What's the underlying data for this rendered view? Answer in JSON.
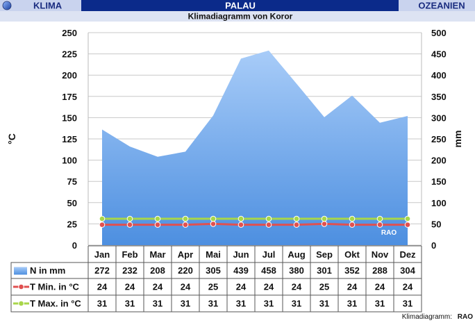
{
  "header": {
    "left_label": "KLIMA",
    "center_label": "PALAU",
    "right_label": "OZEANIEN",
    "subtitle": "Klimadiagramm von Koror"
  },
  "footer": {
    "prefix": "Klimadiagramm:",
    "brand": "RAO"
  },
  "watermark": "RAO",
  "colors": {
    "header_blue": "#0b2a8a",
    "header_light": "#c9d3ee",
    "area_top": "#a8ccf8",
    "area_bottom": "#4d8fe0",
    "tmin": "#e05050",
    "tmax": "#a8d64a"
  },
  "chart_data": {
    "type": "area",
    "categories": [
      "Jan",
      "Feb",
      "Mar",
      "Apr",
      "Mai",
      "Jun",
      "Jul",
      "Aug",
      "Sep",
      "Okt",
      "Nov",
      "Dez"
    ],
    "ylabel_left": "°C",
    "ylabel_right": "mm",
    "ylim_left": [
      0,
      250
    ],
    "ylim_right": [
      0,
      500
    ],
    "yticks_left": [
      0,
      25,
      50,
      75,
      100,
      125,
      150,
      175,
      200,
      225,
      250
    ],
    "yticks_right": [
      0,
      50,
      100,
      150,
      200,
      250,
      300,
      350,
      400,
      450,
      500
    ],
    "grid": true,
    "series": [
      {
        "name": "N in mm",
        "axis": "right",
        "kind": "area",
        "values": [
          272,
          232,
          208,
          220,
          305,
          439,
          458,
          380,
          301,
          352,
          288,
          304
        ]
      },
      {
        "name": "T Min. in °C",
        "axis": "left",
        "kind": "line",
        "values": [
          24,
          24,
          24,
          24,
          25,
          24,
          24,
          24,
          25,
          24,
          24,
          24
        ]
      },
      {
        "name": "T Max. in °C",
        "axis": "left",
        "kind": "line",
        "values": [
          31,
          31,
          31,
          31,
          31,
          31,
          31,
          31,
          31,
          31,
          31,
          31
        ]
      }
    ]
  }
}
